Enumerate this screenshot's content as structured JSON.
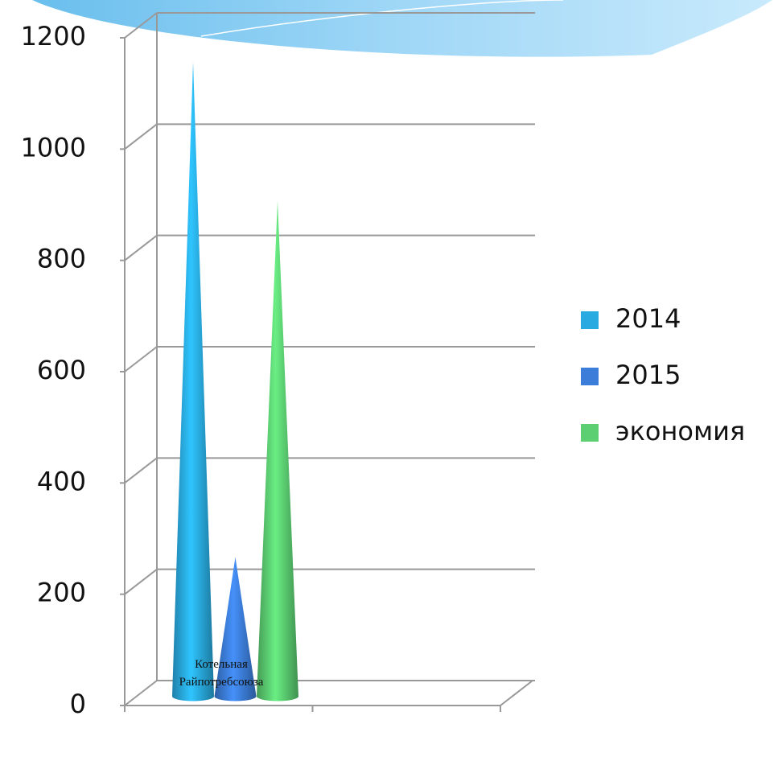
{
  "chart_data": {
    "type": "cone",
    "categories": [
      "Котельная Райпотребсоюза",
      null
    ],
    "series": [
      {
        "name": "2014",
        "color": "#29abe2",
        "values": [
          1140,
          null
        ]
      },
      {
        "name": "2015",
        "color": "#3c7dd9",
        "values": [
          250,
          null
        ]
      },
      {
        "name": "экономия",
        "color": "#5ccf72",
        "values": [
          890,
          null
        ]
      }
    ],
    "ylim": [
      0,
      1200
    ],
    "yticks": [
      0,
      200,
      400,
      600,
      800,
      1000,
      1200
    ],
    "grid": true,
    "legend": "right"
  }
}
